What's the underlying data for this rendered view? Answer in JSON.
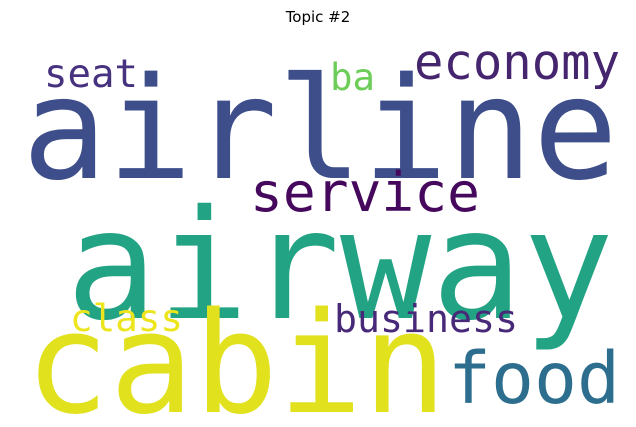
{
  "chart_data": {
    "type": "wordcloud",
    "title": "Topic #2",
    "words": [
      {
        "text": "airway",
        "weight": 1.0,
        "color": "#22a384"
      },
      {
        "text": "airline",
        "weight": 0.84,
        "color": "#3d4e8a"
      },
      {
        "text": "cabin",
        "weight": 0.8,
        "color": "#e1e11d"
      },
      {
        "text": "food",
        "weight": 0.45,
        "color": "#2d6e8e"
      },
      {
        "text": "service",
        "weight": 0.37,
        "color": "#45085d"
      },
      {
        "text": "economy",
        "weight": 0.35,
        "color": "#46256f"
      },
      {
        "text": "business",
        "weight": 0.24,
        "color": "#482878"
      },
      {
        "text": "class",
        "weight": 0.23,
        "color": "#ede51b"
      },
      {
        "text": "seat",
        "weight": 0.23,
        "color": "#46327e"
      },
      {
        "text": "ba",
        "weight": 0.22,
        "color": "#6dcd59"
      }
    ]
  }
}
